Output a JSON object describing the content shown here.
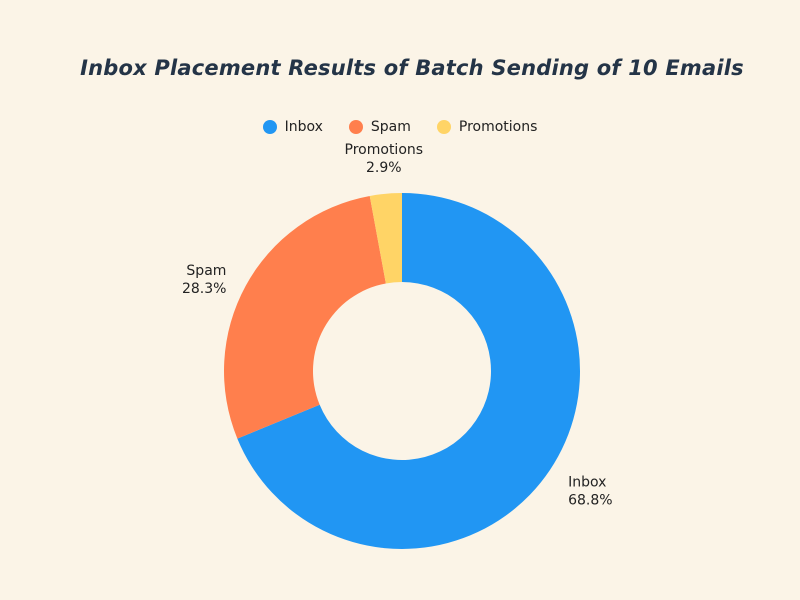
{
  "chart_data": {
    "type": "pie",
    "variant": "donut",
    "title": "Inbox Placement Results of Batch Sending of 10 Emails",
    "legend_position": "top",
    "slices": [
      {
        "name": "Inbox",
        "value": 68.8,
        "label": "68.8%",
        "color": "#2196f3"
      },
      {
        "name": "Spam",
        "value": 28.3,
        "label": "28.3%",
        "color": "#ff7f4d"
      },
      {
        "name": "Promotions",
        "value": 2.9,
        "label": "2.9%",
        "color": "#ffd466"
      }
    ]
  }
}
